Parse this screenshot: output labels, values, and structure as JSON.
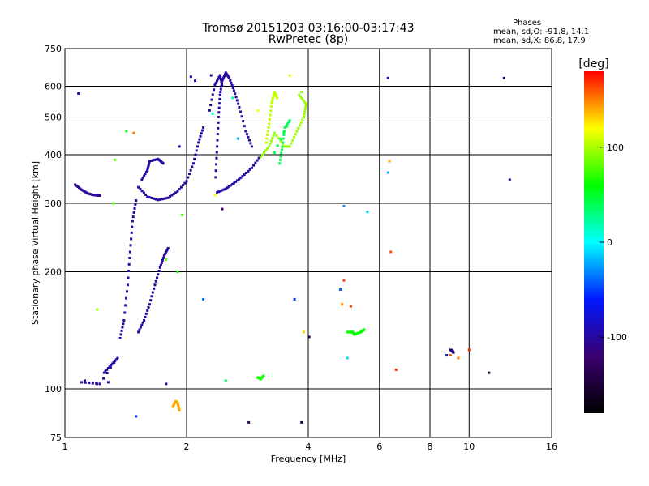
{
  "chart_data": {
    "type": "scatter",
    "title": "Tromsø 20151203 03:16:00-03:17:43",
    "subtitle": "RwPretec (8p)",
    "xlabel": "Frequency [MHz]",
    "ylabel": "Stationary phase Virtual Height [km]",
    "x_scale": "log",
    "y_scale": "log",
    "xlim": [
      1,
      16
    ],
    "ylim": [
      75,
      750
    ],
    "x_ticks": [
      1,
      2,
      4,
      6,
      8,
      10,
      16
    ],
    "y_ticks": [
      75,
      100,
      200,
      300,
      400,
      500,
      600,
      750
    ],
    "grid": true,
    "phase_info": {
      "heading": "Phases",
      "line_o": "mean, sd,O: -91.8, 14.1",
      "line_x": "mean, sd,X:  86.8, 17.9"
    },
    "colorbar": {
      "label": "[deg]",
      "ticks": [
        100,
        0,
        -100
      ],
      "range": [
        -180,
        180
      ],
      "colors": [
        "#000000",
        "#3a0070",
        "#0018ff",
        "#00ffff",
        "#00ff00",
        "#ffff00",
        "#ff0000"
      ]
    },
    "clusters": [
      {
        "phase": -105,
        "points": [
          [
            1.06,
            335
          ],
          [
            1.1,
            325
          ],
          [
            1.14,
            318
          ],
          [
            1.18,
            315
          ],
          [
            1.22,
            314
          ]
        ]
      },
      {
        "phase": -100,
        "points": [
          [
            1.52,
            330
          ],
          [
            1.6,
            312
          ],
          [
            1.7,
            306
          ],
          [
            1.8,
            310
          ],
          [
            1.9,
            322
          ],
          [
            2.0,
            342
          ],
          [
            2.08,
            380
          ],
          [
            2.14,
            430
          ],
          [
            2.2,
            470
          ]
        ]
      },
      {
        "phase": -100,
        "points": [
          [
            1.55,
            345
          ],
          [
            1.6,
            365
          ],
          [
            1.62,
            385
          ],
          [
            1.7,
            390
          ],
          [
            1.75,
            380
          ]
        ]
      },
      {
        "phase": -100,
        "points": [
          [
            2.38,
            320
          ],
          [
            2.5,
            327
          ],
          [
            2.62,
            338
          ],
          [
            2.75,
            352
          ],
          [
            2.9,
            370
          ],
          [
            3.05,
            398
          ]
        ]
      },
      {
        "phase": -100,
        "points": [
          [
            2.36,
            350
          ],
          [
            2.38,
            420
          ],
          [
            2.4,
            500
          ],
          [
            2.42,
            570
          ],
          [
            2.45,
            620
          ],
          [
            2.5,
            650
          ],
          [
            2.55,
            630
          ],
          [
            2.62,
            585
          ],
          [
            2.7,
            530
          ],
          [
            2.8,
            460
          ],
          [
            2.9,
            420
          ]
        ]
      },
      {
        "phase": -100,
        "points": [
          [
            1.37,
            135
          ],
          [
            1.4,
            150
          ],
          [
            1.43,
            185
          ],
          [
            1.45,
            225
          ],
          [
            1.47,
            270
          ],
          [
            1.5,
            305
          ]
        ]
      },
      {
        "phase": -100,
        "points": [
          [
            1.52,
            140
          ],
          [
            1.57,
            150
          ],
          [
            1.62,
            165
          ],
          [
            1.67,
            185
          ],
          [
            1.72,
            205
          ],
          [
            1.76,
            220
          ],
          [
            1.8,
            230
          ]
        ]
      },
      {
        "phase": -100,
        "points": [
          [
            2.28,
            520
          ],
          [
            2.35,
            605
          ],
          [
            2.42,
            640
          ],
          [
            2.45,
            600
          ]
        ]
      },
      {
        "phase": -100,
        "points": [
          [
            1.25,
            110
          ],
          [
            1.3,
            115
          ],
          [
            1.35,
            120
          ],
          [
            1.22,
            103
          ],
          [
            1.1,
            104
          ]
        ]
      },
      {
        "phase": 95,
        "points": [
          [
            3.05,
            395
          ],
          [
            3.2,
            420
          ],
          [
            3.3,
            455
          ],
          [
            3.5,
            420
          ],
          [
            3.6,
            420
          ],
          [
            3.75,
            460
          ],
          [
            3.9,
            500
          ],
          [
            3.95,
            540
          ],
          [
            3.8,
            570
          ]
        ]
      },
      {
        "phase": 105,
        "points": [
          [
            3.15,
            430
          ],
          [
            3.2,
            480
          ],
          [
            3.25,
            545
          ],
          [
            3.3,
            580
          ],
          [
            3.35,
            560
          ]
        ]
      },
      {
        "phase": 40,
        "points": [
          [
            3.4,
            380
          ],
          [
            3.45,
            420
          ],
          [
            3.5,
            470
          ],
          [
            3.6,
            490
          ],
          [
            3.3,
            405
          ]
        ]
      },
      {
        "phase": 65,
        "points": [
          [
            3.0,
            107
          ],
          [
            3.05,
            106
          ],
          [
            3.1,
            108
          ]
        ]
      },
      {
        "phase": 60,
        "points": [
          [
            5.0,
            140
          ],
          [
            5.15,
            140
          ],
          [
            5.2,
            138
          ],
          [
            5.4,
            140
          ],
          [
            5.5,
            142
          ]
        ]
      },
      {
        "phase": -110,
        "points": [
          [
            9.0,
            126
          ],
          [
            9.1,
            125
          ],
          [
            9.15,
            124
          ]
        ]
      },
      {
        "phase": 140,
        "points": [
          [
            1.85,
            90
          ],
          [
            1.88,
            93
          ],
          [
            1.9,
            92
          ],
          [
            1.92,
            88
          ]
        ]
      }
    ],
    "isolated_points": [
      [
        1.08,
        575,
        -100
      ],
      [
        1.12,
        105,
        -100
      ],
      [
        1.2,
        103,
        -110
      ],
      [
        1.28,
        104,
        -90
      ],
      [
        1.2,
        160,
        100
      ],
      [
        1.32,
        300,
        80
      ],
      [
        1.42,
        460,
        60
      ],
      [
        1.48,
        455,
        150
      ],
      [
        1.33,
        388,
        80
      ],
      [
        1.5,
        85,
        -50
      ],
      [
        1.78,
        103,
        -100
      ],
      [
        1.92,
        420,
        -90
      ],
      [
        1.95,
        280,
        80
      ],
      [
        2.05,
        635,
        -100
      ],
      [
        2.35,
        315,
        120
      ],
      [
        2.45,
        290,
        -120
      ],
      [
        2.2,
        170,
        -40
      ],
      [
        2.5,
        105,
        40
      ],
      [
        2.3,
        640,
        -100
      ],
      [
        2.1,
        620,
        -90
      ],
      [
        2.85,
        82,
        -130
      ],
      [
        3.7,
        170,
        -50
      ],
      [
        3.0,
        520,
        120
      ],
      [
        3.6,
        640,
        110
      ],
      [
        3.85,
        580,
        90
      ],
      [
        3.9,
        140,
        130
      ],
      [
        3.85,
        82,
        -150
      ],
      [
        4.02,
        136,
        -140
      ],
      [
        4.9,
        295,
        -30
      ],
      [
        4.8,
        180,
        -40
      ],
      [
        4.85,
        165,
        150
      ],
      [
        4.9,
        190,
        165
      ],
      [
        5.1,
        163,
        160
      ],
      [
        5.0,
        120,
        -10
      ],
      [
        5.6,
        285,
        -10
      ],
      [
        6.3,
        630,
        -100
      ],
      [
        6.35,
        385,
        140
      ],
      [
        6.3,
        360,
        -20
      ],
      [
        6.4,
        225,
        160
      ],
      [
        6.6,
        112,
        170
      ],
      [
        9.0,
        122,
        160
      ],
      [
        9.4,
        120,
        150
      ],
      [
        10.0,
        126,
        170
      ],
      [
        8.8,
        122,
        -90
      ],
      [
        11.2,
        110,
        -150
      ],
      [
        12.2,
        630,
        -120
      ],
      [
        12.6,
        345,
        -100
      ],
      [
        2.32,
        510,
        10
      ],
      [
        2.6,
        560,
        20
      ],
      [
        2.68,
        440,
        -20
      ],
      [
        1.78,
        215,
        80
      ],
      [
        1.9,
        200,
        60
      ]
    ]
  }
}
